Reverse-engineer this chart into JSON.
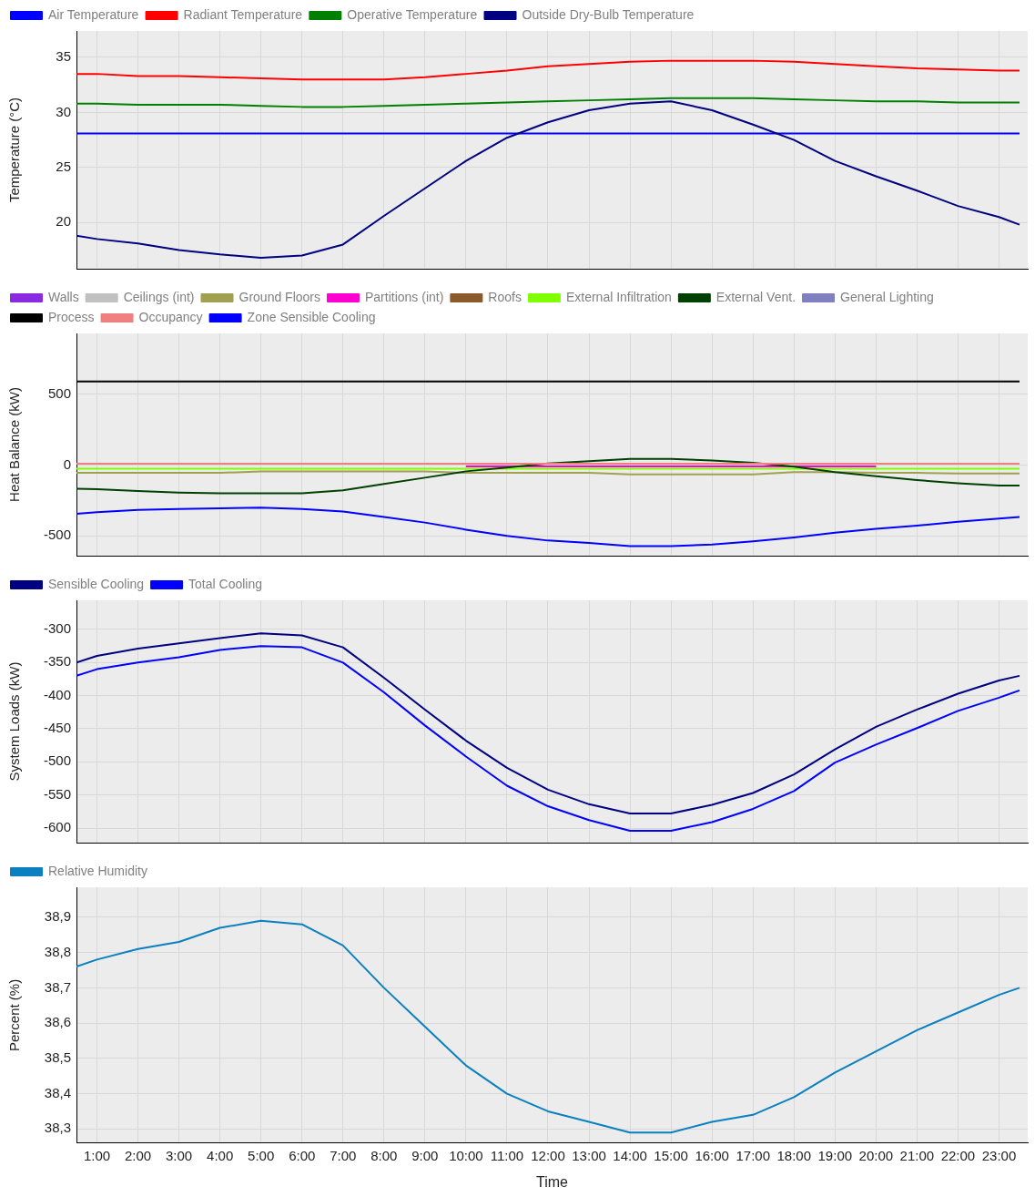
{
  "chart_data": [
    {
      "type": "line",
      "ylabel": "Temperature (°C)",
      "x": [
        0.5,
        1,
        2,
        3,
        4,
        5,
        6,
        7,
        8,
        9,
        10,
        11,
        12,
        13,
        14,
        15,
        16,
        17,
        18,
        19,
        20,
        21,
        22,
        23,
        23.5
      ],
      "xlim": [
        0.5,
        23.7
      ],
      "xticks": [
        1,
        2,
        3,
        4,
        5,
        6,
        7,
        8,
        9,
        10,
        11,
        12,
        13,
        14,
        15,
        16,
        17,
        18,
        19,
        20,
        21,
        22,
        23
      ],
      "ylim": [
        15.8,
        37.4
      ],
      "yticks": [
        20,
        25,
        30,
        35
      ],
      "grid": true,
      "legend": "top left",
      "tick_labels": "y",
      "series": [
        {
          "name": "Air Temperature",
          "color": "#0000ff",
          "values": [
            28.1,
            28.1,
            28.1,
            28.1,
            28.1,
            28.1,
            28.1,
            28.1,
            28.1,
            28.1,
            28.1,
            28.1,
            28.1,
            28.1,
            28.1,
            28.1,
            28.1,
            28.1,
            28.1,
            28.1,
            28.1,
            28.1,
            28.1,
            28.1,
            28.1
          ]
        },
        {
          "name": "Radiant Temperature",
          "color": "#ff0000",
          "values": [
            33.5,
            33.5,
            33.3,
            33.3,
            33.2,
            33.1,
            33.0,
            33.0,
            33.0,
            33.2,
            33.5,
            33.8,
            34.2,
            34.4,
            34.6,
            34.7,
            34.7,
            34.7,
            34.6,
            34.4,
            34.2,
            34.0,
            33.9,
            33.8,
            33.8
          ]
        },
        {
          "name": "Operative Temperature",
          "color": "#008000",
          "values": [
            30.8,
            30.8,
            30.7,
            30.7,
            30.7,
            30.6,
            30.5,
            30.5,
            30.6,
            30.7,
            30.8,
            30.9,
            31.0,
            31.1,
            31.2,
            31.3,
            31.3,
            31.3,
            31.2,
            31.1,
            31.0,
            31.0,
            30.9,
            30.9,
            30.9
          ]
        },
        {
          "name": "Outside Dry-Bulb Temperature",
          "color": "#000080",
          "values": [
            18.8,
            18.5,
            18.1,
            17.5,
            17.1,
            16.8,
            17.0,
            18.0,
            20.6,
            23.1,
            25.6,
            27.7,
            29.1,
            30.2,
            30.8,
            31.0,
            30.2,
            28.9,
            27.5,
            25.6,
            24.2,
            22.9,
            21.5,
            20.5,
            19.8
          ]
        }
      ]
    },
    {
      "type": "line",
      "ylabel": "Heat Balance (kW)",
      "x": [
        0.5,
        1,
        2,
        3,
        4,
        5,
        6,
        7,
        8,
        9,
        10,
        11,
        12,
        13,
        14,
        15,
        16,
        17,
        18,
        19,
        20,
        21,
        22,
        23,
        23.5
      ],
      "xlim": [
        0.5,
        23.7
      ],
      "xticks": [
        1,
        2,
        3,
        4,
        5,
        6,
        7,
        8,
        9,
        10,
        11,
        12,
        13,
        14,
        15,
        16,
        17,
        18,
        19,
        20,
        21,
        22,
        23
      ],
      "ylim": [
        -640,
        930
      ],
      "yticks": [
        -500,
        0,
        500
      ],
      "grid": true,
      "legend": "top left",
      "tick_labels": "y",
      "series": [
        {
          "name": "Walls",
          "color": "#8a2be2",
          "values": [
            null,
            null,
            null,
            null,
            null,
            null,
            null,
            null,
            null,
            null,
            null,
            null,
            null,
            null,
            null,
            null,
            null,
            null,
            null,
            null,
            null,
            null,
            null,
            null,
            null
          ]
        },
        {
          "name": "Ceilings (int)",
          "color": "#c0c0c0",
          "values": [
            null,
            null,
            null,
            null,
            null,
            null,
            null,
            null,
            null,
            null,
            null,
            null,
            null,
            null,
            null,
            null,
            null,
            null,
            null,
            null,
            null,
            null,
            null,
            null,
            null
          ]
        },
        {
          "name": "Ground Floors",
          "color": "#a0a050",
          "values": [
            -55,
            -55,
            -55,
            -55,
            -55,
            -45,
            -45,
            -45,
            -45,
            -45,
            -55,
            -55,
            -55,
            -55,
            -65,
            -65,
            -65,
            -65,
            -50,
            -50,
            -55,
            -55,
            -60,
            -60,
            -60
          ]
        },
        {
          "name": "Partitions (int)",
          "color": "#ff00d0",
          "values": [
            null,
            null,
            null,
            null,
            null,
            null,
            null,
            null,
            null,
            null,
            -10,
            -10,
            -10,
            -10,
            -10,
            -10,
            -10,
            -10,
            -10,
            -10,
            -10,
            null,
            null,
            null,
            null
          ]
        },
        {
          "name": "Roofs",
          "color": "#8b5a2b",
          "values": [
            null,
            null,
            null,
            null,
            null,
            null,
            null,
            null,
            null,
            null,
            null,
            null,
            null,
            null,
            null,
            null,
            null,
            null,
            null,
            null,
            null,
            null,
            null,
            null,
            null
          ]
        },
        {
          "name": "External Infiltration",
          "color": "#80ff00",
          "values": [
            -25,
            -25,
            -25,
            -25,
            -25,
            -25,
            -25,
            -25,
            -25,
            -25,
            -25,
            -25,
            -25,
            -25,
            -25,
            -25,
            -25,
            -25,
            -25,
            -25,
            -25,
            -25,
            -25,
            -25,
            -25
          ]
        },
        {
          "name": "External Vent.",
          "color": "#004000",
          "values": [
            -167,
            -170,
            -183,
            -194,
            -200,
            -200,
            -200,
            -178,
            -133,
            -89,
            -44,
            -17,
            11,
            28,
            44,
            44,
            33,
            17,
            -11,
            -50,
            -78,
            -106,
            -128,
            -144,
            -144
          ]
        },
        {
          "name": "General Lighting",
          "color": "#8080c0",
          "values": [
            null,
            null,
            null,
            null,
            null,
            null,
            null,
            null,
            null,
            null,
            null,
            null,
            null,
            null,
            null,
            null,
            null,
            null,
            null,
            null,
            null,
            null,
            null,
            null,
            null
          ]
        },
        {
          "name": "Process",
          "color": "#000000",
          "values": [
            590,
            590,
            590,
            590,
            590,
            590,
            590,
            590,
            590,
            590,
            590,
            590,
            590,
            590,
            590,
            590,
            590,
            590,
            590,
            590,
            590,
            590,
            590,
            590,
            590
          ]
        },
        {
          "name": "Occupancy",
          "color": "#f08080",
          "values": [
            10,
            10,
            10,
            10,
            10,
            10,
            10,
            10,
            10,
            10,
            10,
            10,
            10,
            10,
            10,
            10,
            10,
            10,
            10,
            10,
            10,
            10,
            10,
            10,
            10
          ]
        },
        {
          "name": "Zone Sensible Cooling",
          "color": "#0000ff",
          "values": [
            -344,
            -333,
            -317,
            -311,
            -306,
            -300,
            -311,
            -328,
            -367,
            -406,
            -456,
            -500,
            -533,
            -550,
            -572,
            -572,
            -561,
            -539,
            -511,
            -478,
            -450,
            -428,
            -400,
            -378,
            -367
          ]
        }
      ]
    },
    {
      "type": "line",
      "ylabel": "System Loads (kW)",
      "x": [
        0.5,
        1,
        2,
        3,
        4,
        5,
        6,
        7,
        8,
        9,
        10,
        11,
        12,
        13,
        14,
        15,
        16,
        17,
        18,
        19,
        20,
        21,
        22,
        23,
        23.5
      ],
      "xlim": [
        0.5,
        23.7
      ],
      "xticks": [
        1,
        2,
        3,
        4,
        5,
        6,
        7,
        8,
        9,
        10,
        11,
        12,
        13,
        14,
        15,
        16,
        17,
        18,
        19,
        20,
        21,
        22,
        23
      ],
      "ylim": [
        -622,
        -256
      ],
      "yticks": [
        -600,
        -550,
        -500,
        -450,
        -400,
        -350,
        -300
      ],
      "grid": true,
      "legend": "top left",
      "tick_labels": "y",
      "series": [
        {
          "name": "Sensible Cooling",
          "color": "#000080",
          "values": [
            -350,
            -340,
            -329,
            -321,
            -313,
            -306,
            -309,
            -327,
            -373,
            -421,
            -468,
            -509,
            -542,
            -564,
            -578,
            -578,
            -565,
            -547,
            -519,
            -481,
            -447,
            -421,
            -397,
            -377,
            -370
          ]
        },
        {
          "name": "Total Cooling",
          "color": "#0000ff",
          "values": [
            -370,
            -360,
            -350,
            -342,
            -331,
            -325,
            -327,
            -350,
            -395,
            -445,
            -492,
            -536,
            -567,
            -588,
            -604,
            -604,
            -591,
            -571,
            -544,
            -501,
            -474,
            -449,
            -423,
            -403,
            -392
          ]
        }
      ]
    },
    {
      "type": "line",
      "xlabel": "Time",
      "ylabel": "Percent (%)",
      "x": [
        0.5,
        1,
        2,
        3,
        4,
        5,
        6,
        7,
        8,
        9,
        10,
        11,
        12,
        13,
        14,
        15,
        16,
        17,
        18,
        19,
        20,
        21,
        22,
        23,
        23.5
      ],
      "xlim": [
        0.5,
        23.7
      ],
      "xticks": [
        {
          "value": 1,
          "label": "1:00"
        },
        {
          "value": 2,
          "label": "2:00"
        },
        {
          "value": 3,
          "label": "3:00"
        },
        {
          "value": 4,
          "label": "4:00"
        },
        {
          "value": 5,
          "label": "5:00"
        },
        {
          "value": 6,
          "label": "6:00"
        },
        {
          "value": 7,
          "label": "7:00"
        },
        {
          "value": 8,
          "label": "8:00"
        },
        {
          "value": 9,
          "label": "9:00"
        },
        {
          "value": 10,
          "label": "10:00"
        },
        {
          "value": 11,
          "label": "11:00"
        },
        {
          "value": 12,
          "label": "12:00"
        },
        {
          "value": 13,
          "label": "13:00"
        },
        {
          "value": 14,
          "label": "14:00"
        },
        {
          "value": 15,
          "label": "15:00"
        },
        {
          "value": 16,
          "label": "16:00"
        },
        {
          "value": 17,
          "label": "17:00"
        },
        {
          "value": 18,
          "label": "18:00"
        },
        {
          "value": 19,
          "label": "19:00"
        },
        {
          "value": 20,
          "label": "20:00"
        },
        {
          "value": 21,
          "label": "21:00"
        },
        {
          "value": 22,
          "label": "22:00"
        },
        {
          "value": 23,
          "label": "23:00"
        }
      ],
      "ylim": [
        38.26,
        38.985
      ],
      "yticks": [
        {
          "value": 38.3,
          "label": "38,3"
        },
        {
          "value": 38.4,
          "label": "38,4"
        },
        {
          "value": 38.5,
          "label": "38,5"
        },
        {
          "value": 38.6,
          "label": "38,6"
        },
        {
          "value": 38.7,
          "label": "38,7"
        },
        {
          "value": 38.8,
          "label": "38,8"
        },
        {
          "value": 38.9,
          "label": "38,9"
        }
      ],
      "grid": true,
      "legend": "top left",
      "series": [
        {
          "name": "Relative Humidity",
          "color": "#0a80c0",
          "values": [
            38.76,
            38.78,
            38.81,
            38.83,
            38.87,
            38.89,
            38.88,
            38.82,
            38.7,
            38.59,
            38.48,
            38.4,
            38.35,
            38.32,
            38.29,
            38.29,
            38.32,
            38.34,
            38.39,
            38.46,
            38.52,
            38.58,
            38.63,
            38.68,
            38.7
          ]
        }
      ]
    }
  ]
}
